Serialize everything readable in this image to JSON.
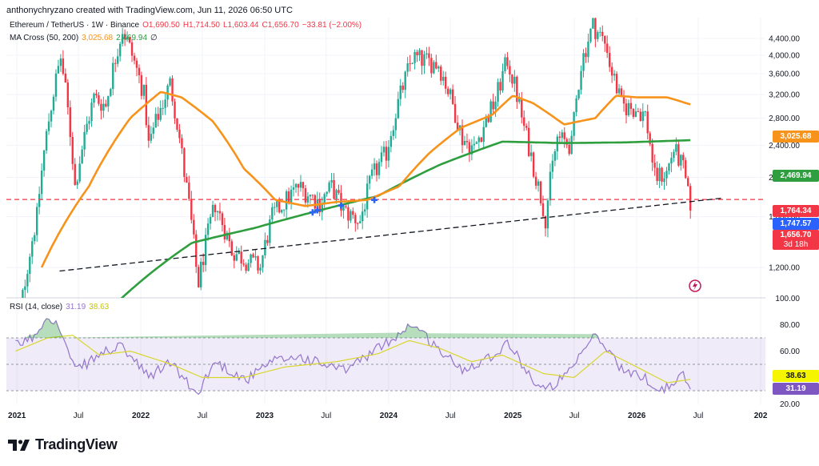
{
  "header": {
    "credit": "anthonychryzano created with TradingView.com, Jun 11, 2026 06:50 UTC"
  },
  "legend": {
    "symbol": "Ethereum / TetherUS · 1W · Binance",
    "open": "O1,690.50",
    "high": "H1,714.50",
    "low": "L1,603.44",
    "close": "C1,656.70",
    "change": "−33.81 (−2.00%)",
    "ma_label": "MA Cross (50, 200)",
    "ma_fast": "3,025.68",
    "ma_slow": "2,469.94",
    "ma_suffix": "∅",
    "rsi_label": "RSI (14, close)",
    "rsi_value": "31.19",
    "rsi_ma_value": "38.63"
  },
  "price_tags": {
    "ma_fast": "3,025.68",
    "ma_slow": "2,469.94",
    "level_red": "1,764.34",
    "trendline": "1,747.57",
    "last_price": "1,656.70",
    "countdown": "3d 18h",
    "rsi_ma": "38.63",
    "rsi": "31.19"
  },
  "colors": {
    "up": "#22ab94",
    "down": "#f23645",
    "ma_fast": "#f7931a",
    "ma_slow": "#2e9e3f",
    "rsi": "#9575cd",
    "rsi_ma": "#d9d62c",
    "trendline": "#131722",
    "level": "#f23645",
    "rsi_band": "#7e57c2"
  },
  "brand": {
    "name": "TradingView",
    "logo_icon": "tradingview-logo-icon"
  },
  "chart_data": {
    "type": "candlestick",
    "timeframe": "1W",
    "price_axis": {
      "scale": "log",
      "ticks": [
        1200,
        1600,
        2000,
        2400,
        2800,
        3200,
        3600,
        4000,
        4400
      ],
      "tick_labels": [
        "1,200.00",
        "1,600.00",
        "2,000.00",
        "2,400.00",
        "2,800.00",
        "3,200.00",
        "3,600.00",
        "4,000.00",
        "4,400.00"
      ]
    },
    "time_axis": {
      "labels": [
        "2021",
        "Jul",
        "2022",
        "Jul",
        "2023",
        "Jul",
        "2024",
        "Jul",
        "2025",
        "Jul",
        "2026",
        "Jul",
        "202"
      ],
      "label_dates": [
        "2021-01-01",
        "2021-07-01",
        "2022-01-01",
        "2022-07-01",
        "2023-01-01",
        "2023-07-01",
        "2024-01-01",
        "2024-07-01",
        "2025-01-01",
        "2025-07-01",
        "2026-01-01",
        "2026-07-01",
        "2027-01-01"
      ],
      "range": [
        "2020-12-01",
        "2027-01-15"
      ]
    },
    "price_anchors": {
      "dates": [
        "2020-12-28",
        "2021-03-01",
        "2021-05-10",
        "2021-06-21",
        "2021-08-16",
        "2021-09-20",
        "2021-11-08",
        "2022-01-10",
        "2022-01-24",
        "2022-03-28",
        "2022-05-09",
        "2022-06-13",
        "2022-06-20",
        "2022-08-08",
        "2022-09-26",
        "2022-11-07",
        "2022-12-19",
        "2023-01-23",
        "2023-04-10",
        "2023-06-12",
        "2023-07-17",
        "2023-08-21",
        "2023-10-09",
        "2023-11-13",
        "2023-12-25",
        "2024-03-11",
        "2024-05-27",
        "2024-08-05",
        "2024-09-09",
        "2024-11-11",
        "2024-12-16",
        "2025-02-03",
        "2025-03-10",
        "2025-04-07",
        "2025-05-12",
        "2025-06-23",
        "2025-07-21",
        "2025-08-25",
        "2025-10-06",
        "2025-10-13",
        "2025-11-17",
        "2025-12-29",
        "2026-01-26",
        "2026-02-23",
        "2026-03-30",
        "2026-04-20",
        "2026-05-18",
        "2026-06-08"
      ],
      "close": [
        730,
        1600,
        3950,
        1900,
        3150,
        3000,
        4650,
        3200,
        2400,
        3400,
        2050,
        1200,
        1100,
        1720,
        1320,
        1250,
        1200,
        1600,
        1900,
        1730,
        1900,
        1650,
        1560,
        2000,
        2300,
        3950,
        3800,
        2500,
        2350,
        3100,
        3900,
        2650,
        2000,
        1590,
        2500,
        2400,
        3800,
        4750,
        4200,
        3800,
        3000,
        2950,
        2850,
        2000,
        2050,
        2350,
        2100,
        1656.7
      ]
    },
    "ma_fast_anchors": {
      "dates": [
        "2021-03-15",
        "2021-08-01",
        "2021-12-01",
        "2022-03-01",
        "2022-05-01",
        "2022-08-01",
        "2022-11-01",
        "2023-02-01",
        "2023-05-01",
        "2023-08-01",
        "2023-11-01",
        "2024-02-01",
        "2024-05-01",
        "2024-08-01",
        "2024-11-01",
        "2025-01-01",
        "2025-03-01",
        "2025-06-01",
        "2025-09-01",
        "2025-11-01",
        "2026-01-01",
        "2026-04-01",
        "2026-06-08"
      ],
      "values": [
        1200,
        1900,
        2800,
        3250,
        3150,
        2750,
        2100,
        1760,
        1700,
        1740,
        1760,
        1900,
        2300,
        2650,
        2850,
        3180,
        3050,
        2700,
        2800,
        3180,
        3150,
        3150,
        3025.68
      ]
    },
    "ma_slow_anchors": {
      "dates": [
        "2021-11-01",
        "2022-06-01",
        "2022-12-01",
        "2023-06-01",
        "2023-12-01",
        "2024-06-01",
        "2024-12-01",
        "2025-06-01",
        "2025-12-01",
        "2026-06-08"
      ],
      "values": [
        1000,
        1380,
        1500,
        1650,
        1800,
        2150,
        2450,
        2430,
        2440,
        2469.94
      ]
    },
    "horizontal_level": 1764.34,
    "trendline": {
      "dates": [
        "2020-12-28",
        "2026-09-15"
      ],
      "values": [
        1125,
        1780
      ]
    },
    "cross_markers": {
      "dates": [
        "2023-05-22",
        "2023-06-05",
        "2023-08-14",
        "2023-11-20"
      ],
      "values": [
        1640,
        1660,
        1705,
        1760
      ]
    },
    "rsi": {
      "axis_ticks": [
        20,
        40,
        60,
        80,
        100
      ],
      "tick_labels": [
        "20.00",
        "",
        "60.00",
        "80.00",
        "100.00"
      ],
      "band": [
        30,
        70
      ],
      "rsi_anchors": {
        "dates": [
          "2020-12-28",
          "2021-02-15",
          "2021-04-05",
          "2021-05-10",
          "2021-06-21",
          "2021-09-20",
          "2021-11-08",
          "2022-01-24",
          "2022-03-28",
          "2022-06-13",
          "2022-08-08",
          "2022-11-07",
          "2023-01-23",
          "2023-04-10",
          "2023-08-21",
          "2023-12-25",
          "2024-03-11",
          "2024-06-10",
          "2024-08-05",
          "2024-11-11",
          "2024-12-16",
          "2025-03-10",
          "2025-04-07",
          "2025-06-23",
          "2025-08-25",
          "2025-10-13",
          "2025-11-24",
          "2026-01-26",
          "2026-03-02",
          "2026-04-20",
          "2026-05-18",
          "2026-06-08"
        ],
        "values": [
          64,
          70,
          88,
          75,
          45,
          60,
          63,
          40,
          52,
          27,
          52,
          38,
          52,
          56,
          45,
          66,
          81,
          58,
          46,
          58,
          67,
          35,
          30,
          45,
          72,
          60,
          44,
          40,
          30,
          35,
          42,
          31.19
        ]
      },
      "ma_anchors": {
        "dates": [
          "2020-12-28",
          "2021-04-01",
          "2021-06-15",
          "2021-09-01",
          "2021-12-01",
          "2022-04-01",
          "2022-07-01",
          "2022-11-01",
          "2023-03-01",
          "2023-08-01",
          "2023-12-01",
          "2024-03-01",
          "2024-06-01",
          "2024-09-01",
          "2024-12-01",
          "2025-04-01",
          "2025-07-01",
          "2025-10-01",
          "2026-01-01",
          "2026-04-01",
          "2026-06-08"
        ],
        "values": [
          60,
          70,
          72,
          57,
          60,
          50,
          40,
          40,
          48,
          52,
          58,
          68,
          62,
          52,
          57,
          43,
          40,
          60,
          48,
          36,
          38.63
        ]
      }
    }
  }
}
